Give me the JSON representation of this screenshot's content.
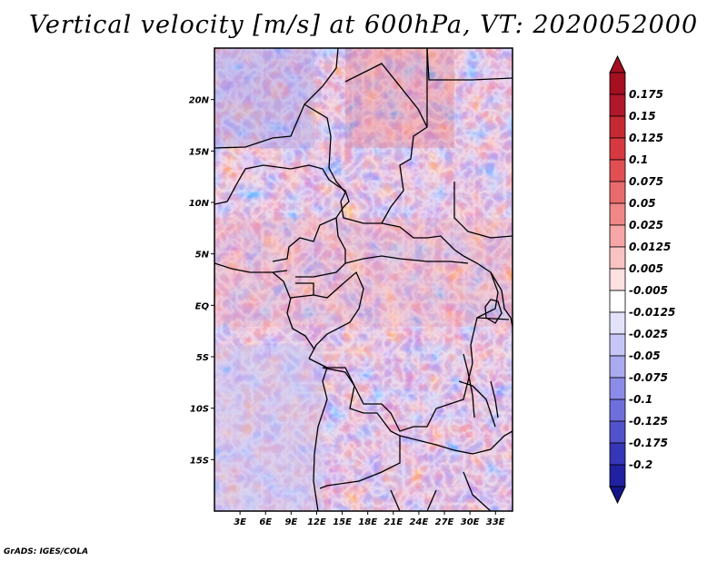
{
  "title": "Vertical velocity [m/s] at 600hPa, VT: 2020052000",
  "footer": "GrADS: IGES/COLA",
  "map": {
    "lon_range": [
      0,
      35
    ],
    "lat_range": [
      -20,
      25
    ],
    "lat_ticks": [
      {
        "lat": 20,
        "label": "20N"
      },
      {
        "lat": 15,
        "label": "15N"
      },
      {
        "lat": 10,
        "label": "10N"
      },
      {
        "lat": 5,
        "label": "5N"
      },
      {
        "lat": 0,
        "label": "EQ"
      },
      {
        "lat": -5,
        "label": "5S"
      },
      {
        "lat": -10,
        "label": "10S"
      },
      {
        "lat": -15,
        "label": "15S"
      }
    ],
    "lon_ticks": [
      {
        "lon": 3,
        "label": "3E"
      },
      {
        "lon": 6,
        "label": "6E"
      },
      {
        "lon": 9,
        "label": "9E"
      },
      {
        "lon": 12,
        "label": "12E"
      },
      {
        "lon": 15,
        "label": "15E"
      },
      {
        "lon": 18,
        "label": "18E"
      },
      {
        "lon": 21,
        "label": "21E"
      },
      {
        "lon": 24,
        "label": "24E"
      },
      {
        "lon": 27,
        "label": "27E"
      },
      {
        "lon": 30,
        "label": "30E"
      },
      {
        "lon": 33,
        "label": "33E"
      }
    ]
  },
  "colorbar": {
    "levels": [
      {
        "label": "0.175",
        "color": "#b2182b"
      },
      {
        "label": "0.15",
        "color": "#c52a33"
      },
      {
        "label": "0.125",
        "color": "#d6393f"
      },
      {
        "label": "0.1",
        "color": "#e04f52"
      },
      {
        "label": "0.075",
        "color": "#e86b6b"
      },
      {
        "label": "0.05",
        "color": "#f08787"
      },
      {
        "label": "0.025",
        "color": "#f6a6a6"
      },
      {
        "label": "0.0125",
        "color": "#fac3c3"
      },
      {
        "label": "0.005",
        "color": "#fde0e0"
      },
      {
        "label": "-0.005",
        "color": "#ffffff"
      },
      {
        "label": "-0.0125",
        "color": "#e2e2fb"
      },
      {
        "label": "-0.025",
        "color": "#c6c6f6"
      },
      {
        "label": "-0.05",
        "color": "#aaaaf0"
      },
      {
        "label": "-0.075",
        "color": "#8c8ce8"
      },
      {
        "label": "-0.1",
        "color": "#6f6fdc"
      },
      {
        "label": "-0.125",
        "color": "#5252cc"
      },
      {
        "label": "-0.175",
        "color": "#3636b8"
      },
      {
        "label": "-0.2",
        "color": "#2020a0"
      }
    ],
    "top_color": "#a50f20",
    "bottom_color": "#14148a"
  },
  "colors": {
    "border": "#000000",
    "background": "#ffffff"
  }
}
